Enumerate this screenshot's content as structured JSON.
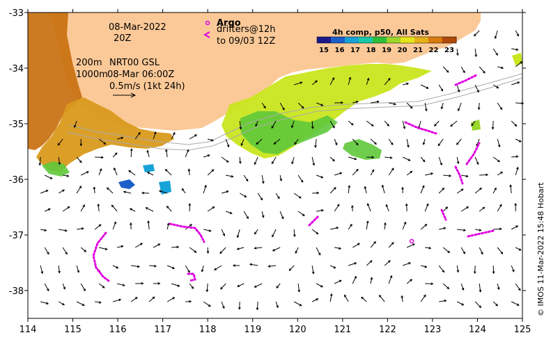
{
  "map": {
    "x_ticks": [
      "114",
      "115",
      "116",
      "117",
      "118",
      "119",
      "120",
      "121",
      "122",
      "123",
      "124",
      "125"
    ],
    "y_ticks": [
      "-33",
      "-34",
      "-35",
      "-36",
      "-37",
      "-38"
    ],
    "lon_range": [
      114,
      125
    ],
    "lat_range": [
      -38.5,
      -33
    ],
    "date_label": "08-Mar-2022",
    "time_label": "20Z",
    "contour_200": "200m",
    "contour_1000": "1000m",
    "current_source": "NRT00 GSL",
    "current_time": "08-Mar 06:00Z",
    "scale_label": "0.5m/s (1kt 24h)",
    "credit": "© IMOS 11-Mar-2022 15:48 Hobart"
  },
  "legend": {
    "argo_label": "Argo",
    "drifters_label": "drifters@12h",
    "drifters_until": "to 09/03 12Z",
    "argo_color": "#e000e0",
    "drifter_color": "#e000e0"
  },
  "colorbar": {
    "title": "4h comp, p50, All Sats",
    "labels": [
      "15",
      "16",
      "17",
      "18",
      "19",
      "20",
      "21",
      "22",
      "23"
    ],
    "colors": [
      "#1a1a8c",
      "#1c5fc8",
      "#17a3d8",
      "#18c8a8",
      "#2fbf3a",
      "#9bd62a",
      "#e6e61a",
      "#e6b21a",
      "#d97a10",
      "#b04a0a"
    ]
  },
  "colors": {
    "land": "#fbc998",
    "warm_sst": "#c8700f",
    "mid_sst": "#d99a1c",
    "cool_sst": "#c9e61e",
    "green_sst": "#5fc83a"
  }
}
